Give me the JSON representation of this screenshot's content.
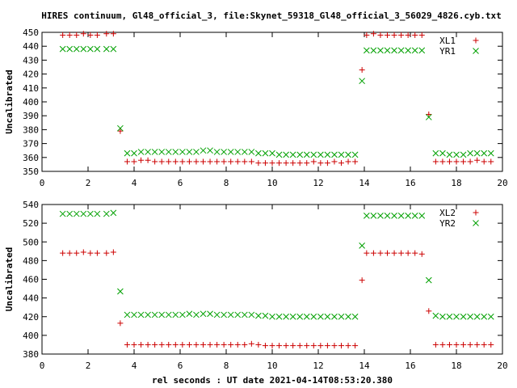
{
  "chart_data": {
    "title": "HIRES continuum, Gl48_official_3, file:Skynet_59318_Gl48_official_3_56029_4826.cyb.txt",
    "xlabel": "rel seconds : UT date 2021-04-14T08:53:20.380",
    "marker_colors": {
      "plus": "#cc0000",
      "cross": "#00a000"
    },
    "panels": [
      {
        "type": "scatter",
        "ylabel": "Uncalibrated",
        "xlim": [
          0,
          20
        ],
        "ylim": [
          350,
          450
        ],
        "xticks": [
          "0",
          "2",
          "4",
          "6",
          "8",
          "10",
          "12",
          "14",
          "16",
          "18",
          "20"
        ],
        "yticks": [
          "350",
          "360",
          "370",
          "380",
          "390",
          "400",
          "410",
          "420",
          "430",
          "440",
          "450"
        ],
        "legend_position": "top-right",
        "series": [
          {
            "name": "XL1",
            "marker": "plus",
            "x": [
              0.9,
              1.2,
              1.5,
              1.8,
              2.1,
              2.4,
              2.8,
              3.1,
              3.4,
              3.7,
              4.0,
              4.3,
              4.6,
              4.9,
              5.2,
              5.5,
              5.8,
              6.1,
              6.4,
              6.7,
              7.0,
              7.3,
              7.6,
              7.9,
              8.2,
              8.5,
              8.8,
              9.1,
              9.4,
              9.7,
              10.0,
              10.3,
              10.6,
              10.9,
              11.2,
              11.5,
              11.8,
              12.1,
              12.4,
              12.7,
              13.0,
              13.3,
              13.6,
              13.9,
              14.1,
              14.4,
              14.7,
              15.0,
              15.3,
              15.6,
              15.9,
              16.2,
              16.5,
              16.8,
              17.1,
              17.4,
              17.7,
              18.0,
              18.3,
              18.6,
              18.9,
              19.2,
              19.5
            ],
            "y": [
              448,
              448,
              448,
              449,
              448,
              448,
              449,
              449,
              379,
              357,
              357,
              358,
              358,
              357,
              357,
              357,
              357,
              357,
              357,
              357,
              357,
              357,
              357,
              357,
              357,
              357,
              357,
              357,
              356,
              356,
              356,
              356,
              356,
              356,
              356,
              356,
              357,
              356,
              356,
              357,
              356,
              357,
              357,
              423,
              448,
              449,
              448,
              448,
              448,
              448,
              448,
              448,
              448,
              391,
              357,
              357,
              357,
              357,
              357,
              357,
              358,
              357,
              357
            ]
          },
          {
            "name": "YR1",
            "marker": "cross",
            "x": [
              0.9,
              1.2,
              1.5,
              1.8,
              2.1,
              2.4,
              2.8,
              3.1,
              3.4,
              3.7,
              4.0,
              4.3,
              4.6,
              4.9,
              5.2,
              5.5,
              5.8,
              6.1,
              6.4,
              6.7,
              7.0,
              7.3,
              7.6,
              7.9,
              8.2,
              8.5,
              8.8,
              9.1,
              9.4,
              9.7,
              10.0,
              10.3,
              10.6,
              10.9,
              11.2,
              11.5,
              11.8,
              12.1,
              12.4,
              12.7,
              13.0,
              13.3,
              13.6,
              13.9,
              14.1,
              14.4,
              14.7,
              15.0,
              15.3,
              15.6,
              15.9,
              16.2,
              16.5,
              16.8,
              17.1,
              17.4,
              17.7,
              18.0,
              18.3,
              18.6,
              18.9,
              19.2,
              19.5
            ],
            "y": [
              438,
              438,
              438,
              438,
              438,
              438,
              438,
              438,
              381,
              363,
              363,
              364,
              364,
              364,
              364,
              364,
              364,
              364,
              364,
              364,
              365,
              365,
              364,
              364,
              364,
              364,
              364,
              364,
              363,
              363,
              363,
              362,
              362,
              362,
              362,
              362,
              362,
              362,
              362,
              362,
              362,
              362,
              362,
              415,
              437,
              437,
              437,
              437,
              437,
              437,
              437,
              437,
              437,
              389,
              363,
              363,
              362,
              362,
              362,
              363,
              363,
              363,
              363
            ]
          }
        ]
      },
      {
        "type": "scatter",
        "ylabel": "Uncalibrated",
        "xlim": [
          0,
          20
        ],
        "ylim": [
          380,
          540
        ],
        "xticks": [
          "0",
          "2",
          "4",
          "6",
          "8",
          "10",
          "12",
          "14",
          "16",
          "18",
          "20"
        ],
        "yticks": [
          "380",
          "400",
          "420",
          "440",
          "460",
          "480",
          "500",
          "520",
          "540"
        ],
        "legend_position": "top-right",
        "series": [
          {
            "name": "XL2",
            "marker": "plus",
            "x": [
              0.9,
              1.2,
              1.5,
              1.8,
              2.1,
              2.4,
              2.8,
              3.1,
              3.4,
              3.7,
              4.0,
              4.3,
              4.6,
              4.9,
              5.2,
              5.5,
              5.8,
              6.1,
              6.4,
              6.7,
              7.0,
              7.3,
              7.6,
              7.9,
              8.2,
              8.5,
              8.8,
              9.1,
              9.4,
              9.7,
              10.0,
              10.3,
              10.6,
              10.9,
              11.2,
              11.5,
              11.8,
              12.1,
              12.4,
              12.7,
              13.0,
              13.3,
              13.6,
              13.9,
              14.1,
              14.4,
              14.7,
              15.0,
              15.3,
              15.6,
              15.9,
              16.2,
              16.5,
              16.8,
              17.1,
              17.4,
              17.7,
              18.0,
              18.3,
              18.6,
              18.9,
              19.2,
              19.5
            ],
            "y": [
              488,
              488,
              488,
              489,
              488,
              488,
              488,
              489,
              413,
              390,
              390,
              390,
              390,
              390,
              390,
              390,
              390,
              390,
              390,
              390,
              390,
              390,
              390,
              390,
              390,
              390,
              390,
              391,
              390,
              389,
              389,
              389,
              389,
              389,
              389,
              389,
              389,
              389,
              389,
              389,
              389,
              389,
              389,
              459,
              488,
              488,
              488,
              488,
              488,
              488,
              488,
              488,
              487,
              426,
              390,
              390,
              390,
              390,
              390,
              390,
              390,
              390,
              390
            ]
          },
          {
            "name": "YR2",
            "marker": "cross",
            "x": [
              0.9,
              1.2,
              1.5,
              1.8,
              2.1,
              2.4,
              2.8,
              3.1,
              3.4,
              3.7,
              4.0,
              4.3,
              4.6,
              4.9,
              5.2,
              5.5,
              5.8,
              6.1,
              6.4,
              6.7,
              7.0,
              7.3,
              7.6,
              7.9,
              8.2,
              8.5,
              8.8,
              9.1,
              9.4,
              9.7,
              10.0,
              10.3,
              10.6,
              10.9,
              11.2,
              11.5,
              11.8,
              12.1,
              12.4,
              12.7,
              13.0,
              13.3,
              13.6,
              13.9,
              14.1,
              14.4,
              14.7,
              15.0,
              15.3,
              15.6,
              15.9,
              16.2,
              16.5,
              16.8,
              17.1,
              17.4,
              17.7,
              18.0,
              18.3,
              18.6,
              18.9,
              19.2,
              19.5
            ],
            "y": [
              530,
              530,
              530,
              530,
              530,
              530,
              530,
              531,
              447,
              422,
              422,
              422,
              422,
              422,
              422,
              422,
              422,
              422,
              423,
              422,
              423,
              423,
              422,
              422,
              422,
              422,
              422,
              422,
              421,
              421,
              420,
              420,
              420,
              420,
              420,
              420,
              420,
              420,
              420,
              420,
              420,
              420,
              420,
              496,
              528,
              528,
              528,
              528,
              528,
              528,
              528,
              528,
              528,
              459,
              421,
              420,
              420,
              420,
              420,
              420,
              420,
              420,
              420
            ]
          }
        ]
      }
    ]
  }
}
